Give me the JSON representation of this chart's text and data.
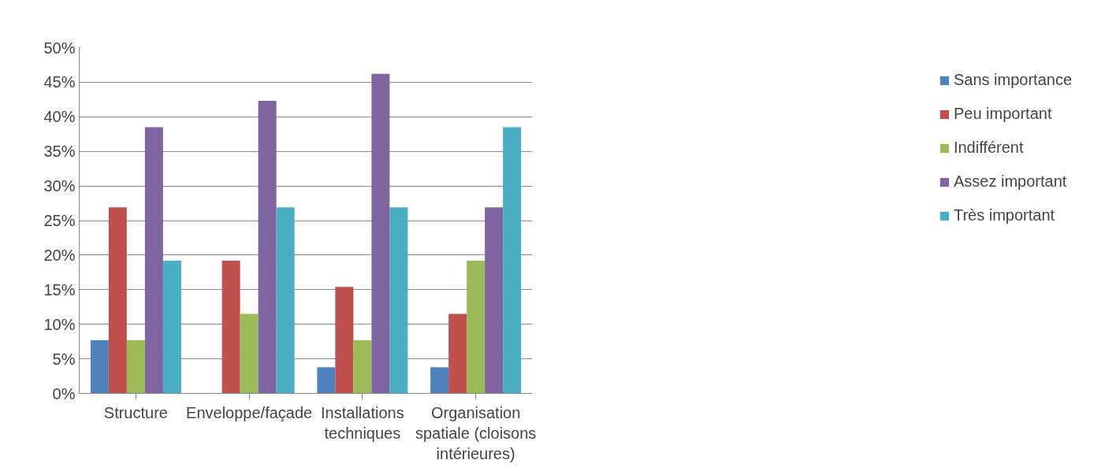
{
  "chart_data": {
    "type": "bar",
    "categories": [
      "Structure",
      "Enveloppe/façade",
      "Installations techniques",
      "Organisation spatiale (cloisons intérieures)"
    ],
    "series": [
      {
        "name": "Sans importance",
        "color": "#4f81bd",
        "values": [
          7.7,
          0,
          3.8,
          3.8
        ]
      },
      {
        "name": "Peu important",
        "color": "#c0504d",
        "values": [
          26.9,
          19.2,
          15.4,
          11.5
        ]
      },
      {
        "name": "Indifférent",
        "color": "#9bbb59",
        "values": [
          7.7,
          11.5,
          7.7,
          19.2
        ]
      },
      {
        "name": "Assez important",
        "color": "#8064a2",
        "values": [
          38.5,
          42.3,
          46.2,
          26.9
        ]
      },
      {
        "name": "Très important",
        "color": "#4bacc6",
        "values": [
          19.2,
          26.9,
          26.9,
          38.5
        ]
      }
    ],
    "ylim": [
      0,
      50
    ],
    "yticks": [
      {
        "value": 0,
        "label": "0%"
      },
      {
        "value": 5,
        "label": "5%"
      },
      {
        "value": 10,
        "label": "10%"
      },
      {
        "value": 15,
        "label": "15%"
      },
      {
        "value": 20,
        "label": "20%"
      },
      {
        "value": 25,
        "label": "25%"
      },
      {
        "value": 30,
        "label": "30%"
      },
      {
        "value": 35,
        "label": "35%"
      },
      {
        "value": 40,
        "label": "40%"
      },
      {
        "value": 45,
        "label": "45%"
      },
      {
        "value": 50,
        "label": "50%"
      }
    ],
    "grid": "y",
    "legend": "right"
  }
}
